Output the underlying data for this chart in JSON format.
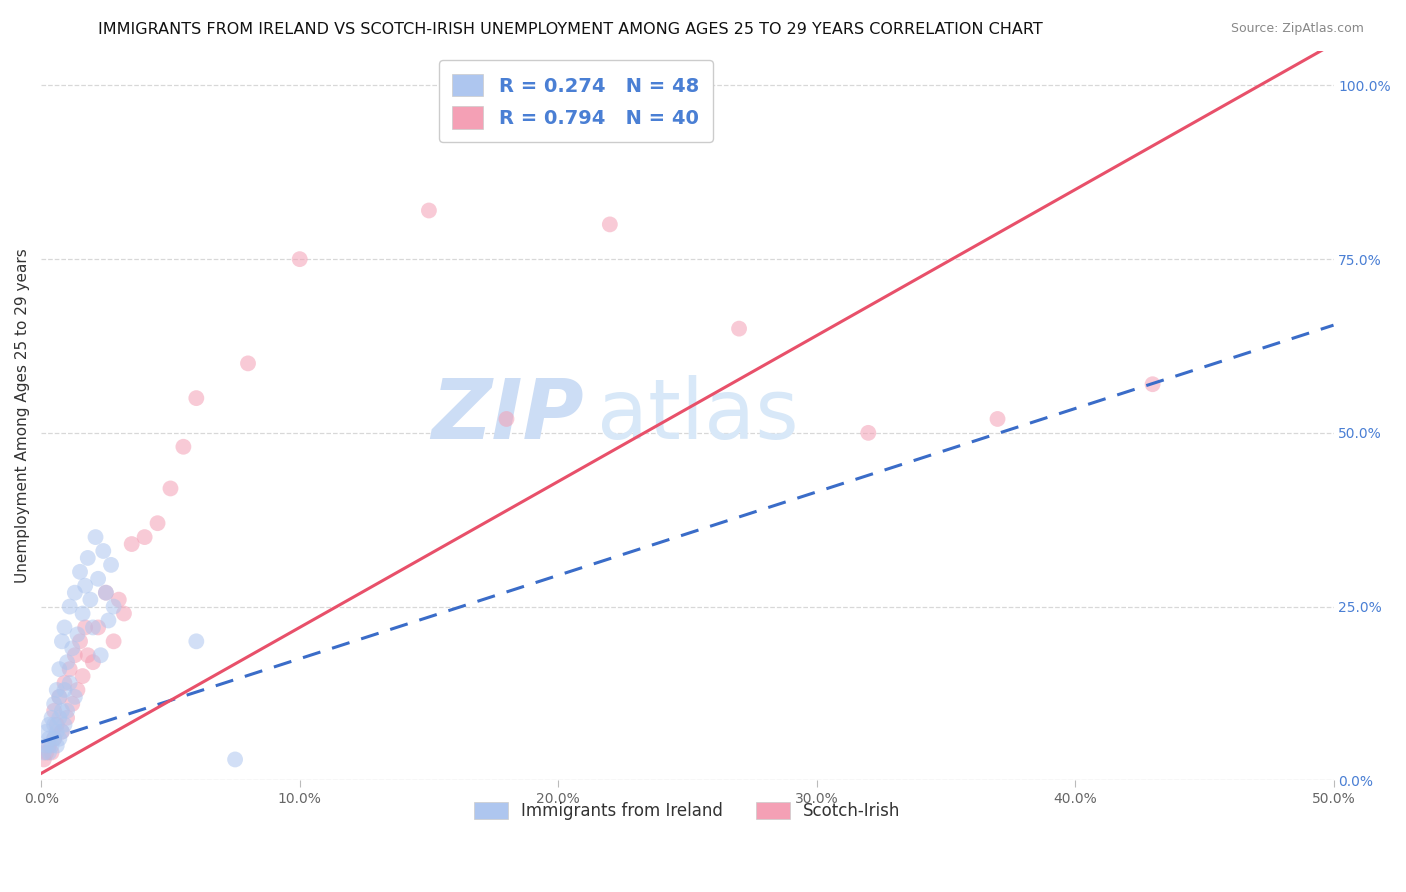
{
  "title": "IMMIGRANTS FROM IRELAND VS SCOTCH-IRISH UNEMPLOYMENT AMONG AGES 25 TO 29 YEARS CORRELATION CHART",
  "source": "Source: ZipAtlas.com",
  "ylabel": "Unemployment Among Ages 25 to 29 years",
  "xlim": [
    0.0,
    0.5
  ],
  "ylim": [
    0.0,
    1.05
  ],
  "xticks": [
    0.0,
    0.1,
    0.2,
    0.3,
    0.4,
    0.5
  ],
  "yticks": [
    0.0,
    0.25,
    0.5,
    0.75,
    1.0
  ],
  "xtick_labels": [
    "0.0%",
    "10.0%",
    "20.0%",
    "30.0%",
    "40.0%",
    "50.0%"
  ],
  "ytick_labels_right": [
    "0.0%",
    "25.0%",
    "50.0%",
    "75.0%",
    "100.0%"
  ],
  "legend_labels": [
    "Immigrants from Ireland",
    "Scotch-Irish"
  ],
  "R_ireland": 0.274,
  "N_ireland": 48,
  "R_scotch": 0.794,
  "N_scotch": 40,
  "ireland_color": "#aec6ef",
  "scotch_color": "#f4a0b5",
  "ireland_line_color": "#3a6cc8",
  "scotch_line_color": "#e8506a",
  "background_color": "#ffffff",
  "watermark_color": "#ccddf5",
  "title_fontsize": 11.5,
  "axis_label_fontsize": 11,
  "tick_fontsize": 10,
  "dot_size": 130,
  "dot_alpha": 0.55,
  "ireland_slope": 1.2,
  "ireland_intercept": 0.055,
  "scotch_slope": 2.1,
  "scotch_intercept": 0.01,
  "ireland_x": [
    0.001,
    0.002,
    0.002,
    0.003,
    0.003,
    0.003,
    0.004,
    0.004,
    0.005,
    0.005,
    0.005,
    0.006,
    0.006,
    0.006,
    0.007,
    0.007,
    0.007,
    0.007,
    0.008,
    0.008,
    0.008,
    0.009,
    0.009,
    0.009,
    0.01,
    0.01,
    0.011,
    0.011,
    0.012,
    0.013,
    0.013,
    0.014,
    0.015,
    0.016,
    0.017,
    0.018,
    0.019,
    0.02,
    0.021,
    0.022,
    0.023,
    0.024,
    0.025,
    0.026,
    0.027,
    0.028,
    0.06,
    0.075
  ],
  "ireland_y": [
    0.04,
    0.05,
    0.07,
    0.04,
    0.06,
    0.08,
    0.05,
    0.09,
    0.06,
    0.08,
    0.11,
    0.05,
    0.07,
    0.13,
    0.06,
    0.09,
    0.12,
    0.16,
    0.07,
    0.1,
    0.2,
    0.08,
    0.13,
    0.22,
    0.1,
    0.17,
    0.14,
    0.25,
    0.19,
    0.12,
    0.27,
    0.21,
    0.3,
    0.24,
    0.28,
    0.32,
    0.26,
    0.22,
    0.35,
    0.29,
    0.18,
    0.33,
    0.27,
    0.23,
    0.31,
    0.25,
    0.2,
    0.03
  ],
  "scotch_x": [
    0.001,
    0.002,
    0.003,
    0.004,
    0.005,
    0.005,
    0.006,
    0.007,
    0.008,
    0.009,
    0.01,
    0.011,
    0.012,
    0.013,
    0.014,
    0.015,
    0.016,
    0.017,
    0.018,
    0.02,
    0.022,
    0.025,
    0.028,
    0.03,
    0.032,
    0.035,
    0.04,
    0.045,
    0.05,
    0.055,
    0.06,
    0.08,
    0.1,
    0.15,
    0.18,
    0.22,
    0.27,
    0.32,
    0.37,
    0.43
  ],
  "scotch_y": [
    0.03,
    0.04,
    0.05,
    0.04,
    0.06,
    0.1,
    0.08,
    0.12,
    0.07,
    0.14,
    0.09,
    0.16,
    0.11,
    0.18,
    0.13,
    0.2,
    0.15,
    0.22,
    0.18,
    0.17,
    0.22,
    0.27,
    0.2,
    0.26,
    0.24,
    0.34,
    0.35,
    0.37,
    0.42,
    0.48,
    0.55,
    0.6,
    0.75,
    0.82,
    0.52,
    0.8,
    0.65,
    0.5,
    0.52,
    0.57
  ]
}
